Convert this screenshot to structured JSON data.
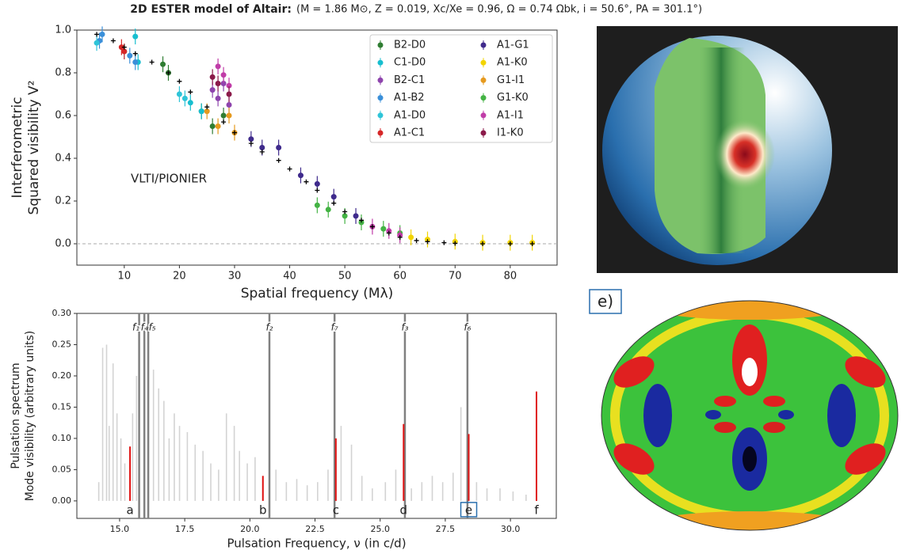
{
  "title": "2D ESTER model of Altair:",
  "subtitle": "(M = 1.86 M⊙, Z = 0.019, Xc/Xe = 0.96, Ω = 0.74 Ωbk, i = 50.6°, PA = 301.1°)",
  "panel_label": "e)",
  "chart_data": [
    {
      "type": "scatter",
      "xlabel": "Spatial frequency (Mλ)",
      "ylabel": [
        "Interferometric",
        "Squared visibility V²"
      ],
      "annotation": "VLTI/PIONIER",
      "xlim": [
        1.4,
        88.5
      ],
      "ylim": [
        -0.1,
        1.0
      ],
      "xticks": [
        10,
        20,
        30,
        40,
        50,
        60,
        70,
        80
      ],
      "yticks": [
        {
          "value": 0,
          "label": "0.0"
        },
        0.2,
        0.4,
        0.6,
        0.8,
        {
          "value": 1,
          "label": "1.0"
        }
      ],
      "hline": 0,
      "legend": "upper right",
      "series": [
        {
          "name": "B2-D0",
          "color": "#2f7d32",
          "x": [
            17,
            18,
            24,
            26,
            28
          ],
          "values": [
            0.84,
            0.8,
            0.62,
            0.55,
            0.6
          ]
        },
        {
          "name": "C1-D0",
          "color": "#17becf",
          "x": [
            12,
            12.5,
            22,
            24
          ],
          "values": [
            0.97,
            0.85,
            0.66,
            0.62
          ]
        },
        {
          "name": "B2-C1",
          "color": "#8e44ad",
          "x": [
            26,
            27,
            28,
            29
          ],
          "values": [
            0.72,
            0.68,
            0.75,
            0.65
          ]
        },
        {
          "name": "A1-B2",
          "color": "#3a8fd9",
          "x": [
            5.5,
            6,
            11,
            12
          ],
          "values": [
            0.95,
            0.98,
            0.88,
            0.85
          ]
        },
        {
          "name": "A1-D0",
          "color": "#2ec4d8",
          "x": [
            5,
            10,
            20,
            21
          ],
          "values": [
            0.94,
            0.9,
            0.7,
            0.68
          ]
        },
        {
          "name": "A1-C1",
          "color": "#d62728",
          "x": [
            9.5,
            10
          ],
          "values": [
            0.92,
            0.9
          ]
        },
        {
          "name": "A1-G1",
          "color": "#3f2a8c",
          "x": [
            33,
            35,
            38,
            42,
            45,
            48,
            52
          ],
          "values": [
            0.49,
            0.45,
            0.45,
            0.32,
            0.28,
            0.22,
            0.13
          ]
        },
        {
          "name": "A1-K0",
          "color": "#f2d400",
          "x": [
            62,
            65,
            70,
            75,
            80,
            84
          ],
          "values": [
            0.03,
            0.02,
            0.01,
            0.005,
            0.005,
            0.005
          ]
        },
        {
          "name": "G1-I1",
          "color": "#e69a1e",
          "x": [
            25,
            27,
            29,
            30
          ],
          "values": [
            0.62,
            0.55,
            0.6,
            0.52
          ]
        },
        {
          "name": "G1-K0",
          "color": "#44b344",
          "x": [
            45,
            47,
            50,
            53,
            57,
            60
          ],
          "values": [
            0.18,
            0.16,
            0.13,
            0.1,
            0.07,
            0.05
          ]
        },
        {
          "name": "A1-I1",
          "color": "#c03ca8",
          "x": [
            27,
            28,
            29,
            55,
            58,
            60
          ],
          "values": [
            0.83,
            0.79,
            0.74,
            0.08,
            0.06,
            0.04
          ]
        },
        {
          "name": "I1-K0",
          "color": "#8b1a4a",
          "x": [
            26,
            27,
            29
          ],
          "values": [
            0.78,
            0.75,
            0.7
          ]
        }
      ],
      "model": {
        "color": "#000000",
        "x": [
          5,
          8,
          10,
          12,
          15,
          18,
          20,
          22,
          25,
          28,
          30,
          33,
          35,
          38,
          40,
          43,
          45,
          48,
          50,
          53,
          55,
          58,
          60,
          63,
          65,
          68,
          70,
          75,
          80,
          84
        ],
        "values": [
          0.98,
          0.95,
          0.92,
          0.89,
          0.85,
          0.8,
          0.76,
          0.71,
          0.64,
          0.57,
          0.52,
          0.47,
          0.43,
          0.39,
          0.35,
          0.29,
          0.25,
          0.19,
          0.15,
          0.11,
          0.08,
          0.05,
          0.03,
          0.015,
          0.01,
          0.005,
          0.002,
          0,
          0,
          0
        ]
      }
    },
    {
      "type": "bar",
      "xlabel": "Pulsation Frequency, ν (in c/d)",
      "ylabel": [
        "Pulsation spectrum",
        "Mode visibility (arbitrary units)"
      ],
      "xlim": [
        13.36,
        31.76
      ],
      "ylim": [
        -0.028,
        0.3
      ],
      "xticks": [
        {
          "value": 15,
          "label": "15.0"
        },
        17.5,
        {
          "value": 20,
          "label": "20.0"
        },
        22.5,
        {
          "value": 25,
          "label": "25.0"
        },
        27.5,
        {
          "value": 30,
          "label": "30.0"
        }
      ],
      "yticks": [
        {
          "value": 0,
          "label": "0.00"
        },
        {
          "value": 0.05,
          "label": "0.05"
        },
        {
          "value": 0.1,
          "label": "0.10"
        },
        {
          "value": 0.15,
          "label": "0.15"
        },
        {
          "value": 0.2,
          "label": "0.20"
        },
        {
          "value": 0.25,
          "label": "0.25"
        },
        {
          "value": 0.3,
          "label": "0.30"
        }
      ],
      "spectrum": {
        "color": "#d3d3d3",
        "x": [
          14.2,
          14.35,
          14.5,
          14.6,
          14.75,
          14.9,
          15.05,
          15.2,
          15.5,
          15.65,
          16.3,
          16.5,
          16.7,
          16.9,
          17.1,
          17.3,
          17.6,
          17.9,
          18.2,
          18.5,
          18.8,
          19.1,
          19.4,
          19.6,
          19.9,
          20.2,
          21.0,
          21.4,
          21.8,
          22.2,
          22.6,
          23.0,
          23.5,
          23.9,
          24.3,
          24.7,
          25.2,
          25.6,
          26.2,
          26.6,
          27.0,
          27.4,
          27.8,
          28.1,
          28.7,
          29.1,
          29.6,
          30.1,
          30.6
        ],
        "values": [
          0.03,
          0.245,
          0.25,
          0.12,
          0.22,
          0.14,
          0.1,
          0.06,
          0.14,
          0.2,
          0.21,
          0.18,
          0.16,
          0.1,
          0.14,
          0.12,
          0.11,
          0.09,
          0.08,
          0.06,
          0.05,
          0.14,
          0.12,
          0.08,
          0.06,
          0.07,
          0.05,
          0.03,
          0.035,
          0.025,
          0.03,
          0.05,
          0.12,
          0.09,
          0.04,
          0.02,
          0.03,
          0.05,
          0.02,
          0.03,
          0.04,
          0.03,
          0.045,
          0.15,
          0.03,
          0.02,
          0.02,
          0.015,
          0.01
        ]
      },
      "selected": {
        "color": "#e01010",
        "x": [
          15.4,
          20.5,
          23.3,
          25.9,
          28.4,
          31.0
        ],
        "values": [
          0.087,
          0.04,
          0.1,
          0.123,
          0.107,
          0.175
        ],
        "labels": [
          "a",
          "b",
          "c",
          "d",
          "e",
          "f"
        ]
      },
      "modes": {
        "color": "#808080",
        "x": [
          15.75,
          15.95,
          16.1,
          20.75,
          23.25,
          25.95,
          28.35
        ],
        "labels": [
          "f₁",
          "f₄",
          "f₅",
          "f₂",
          "f₇",
          "f₃",
          "f₆"
        ]
      }
    }
  ]
}
